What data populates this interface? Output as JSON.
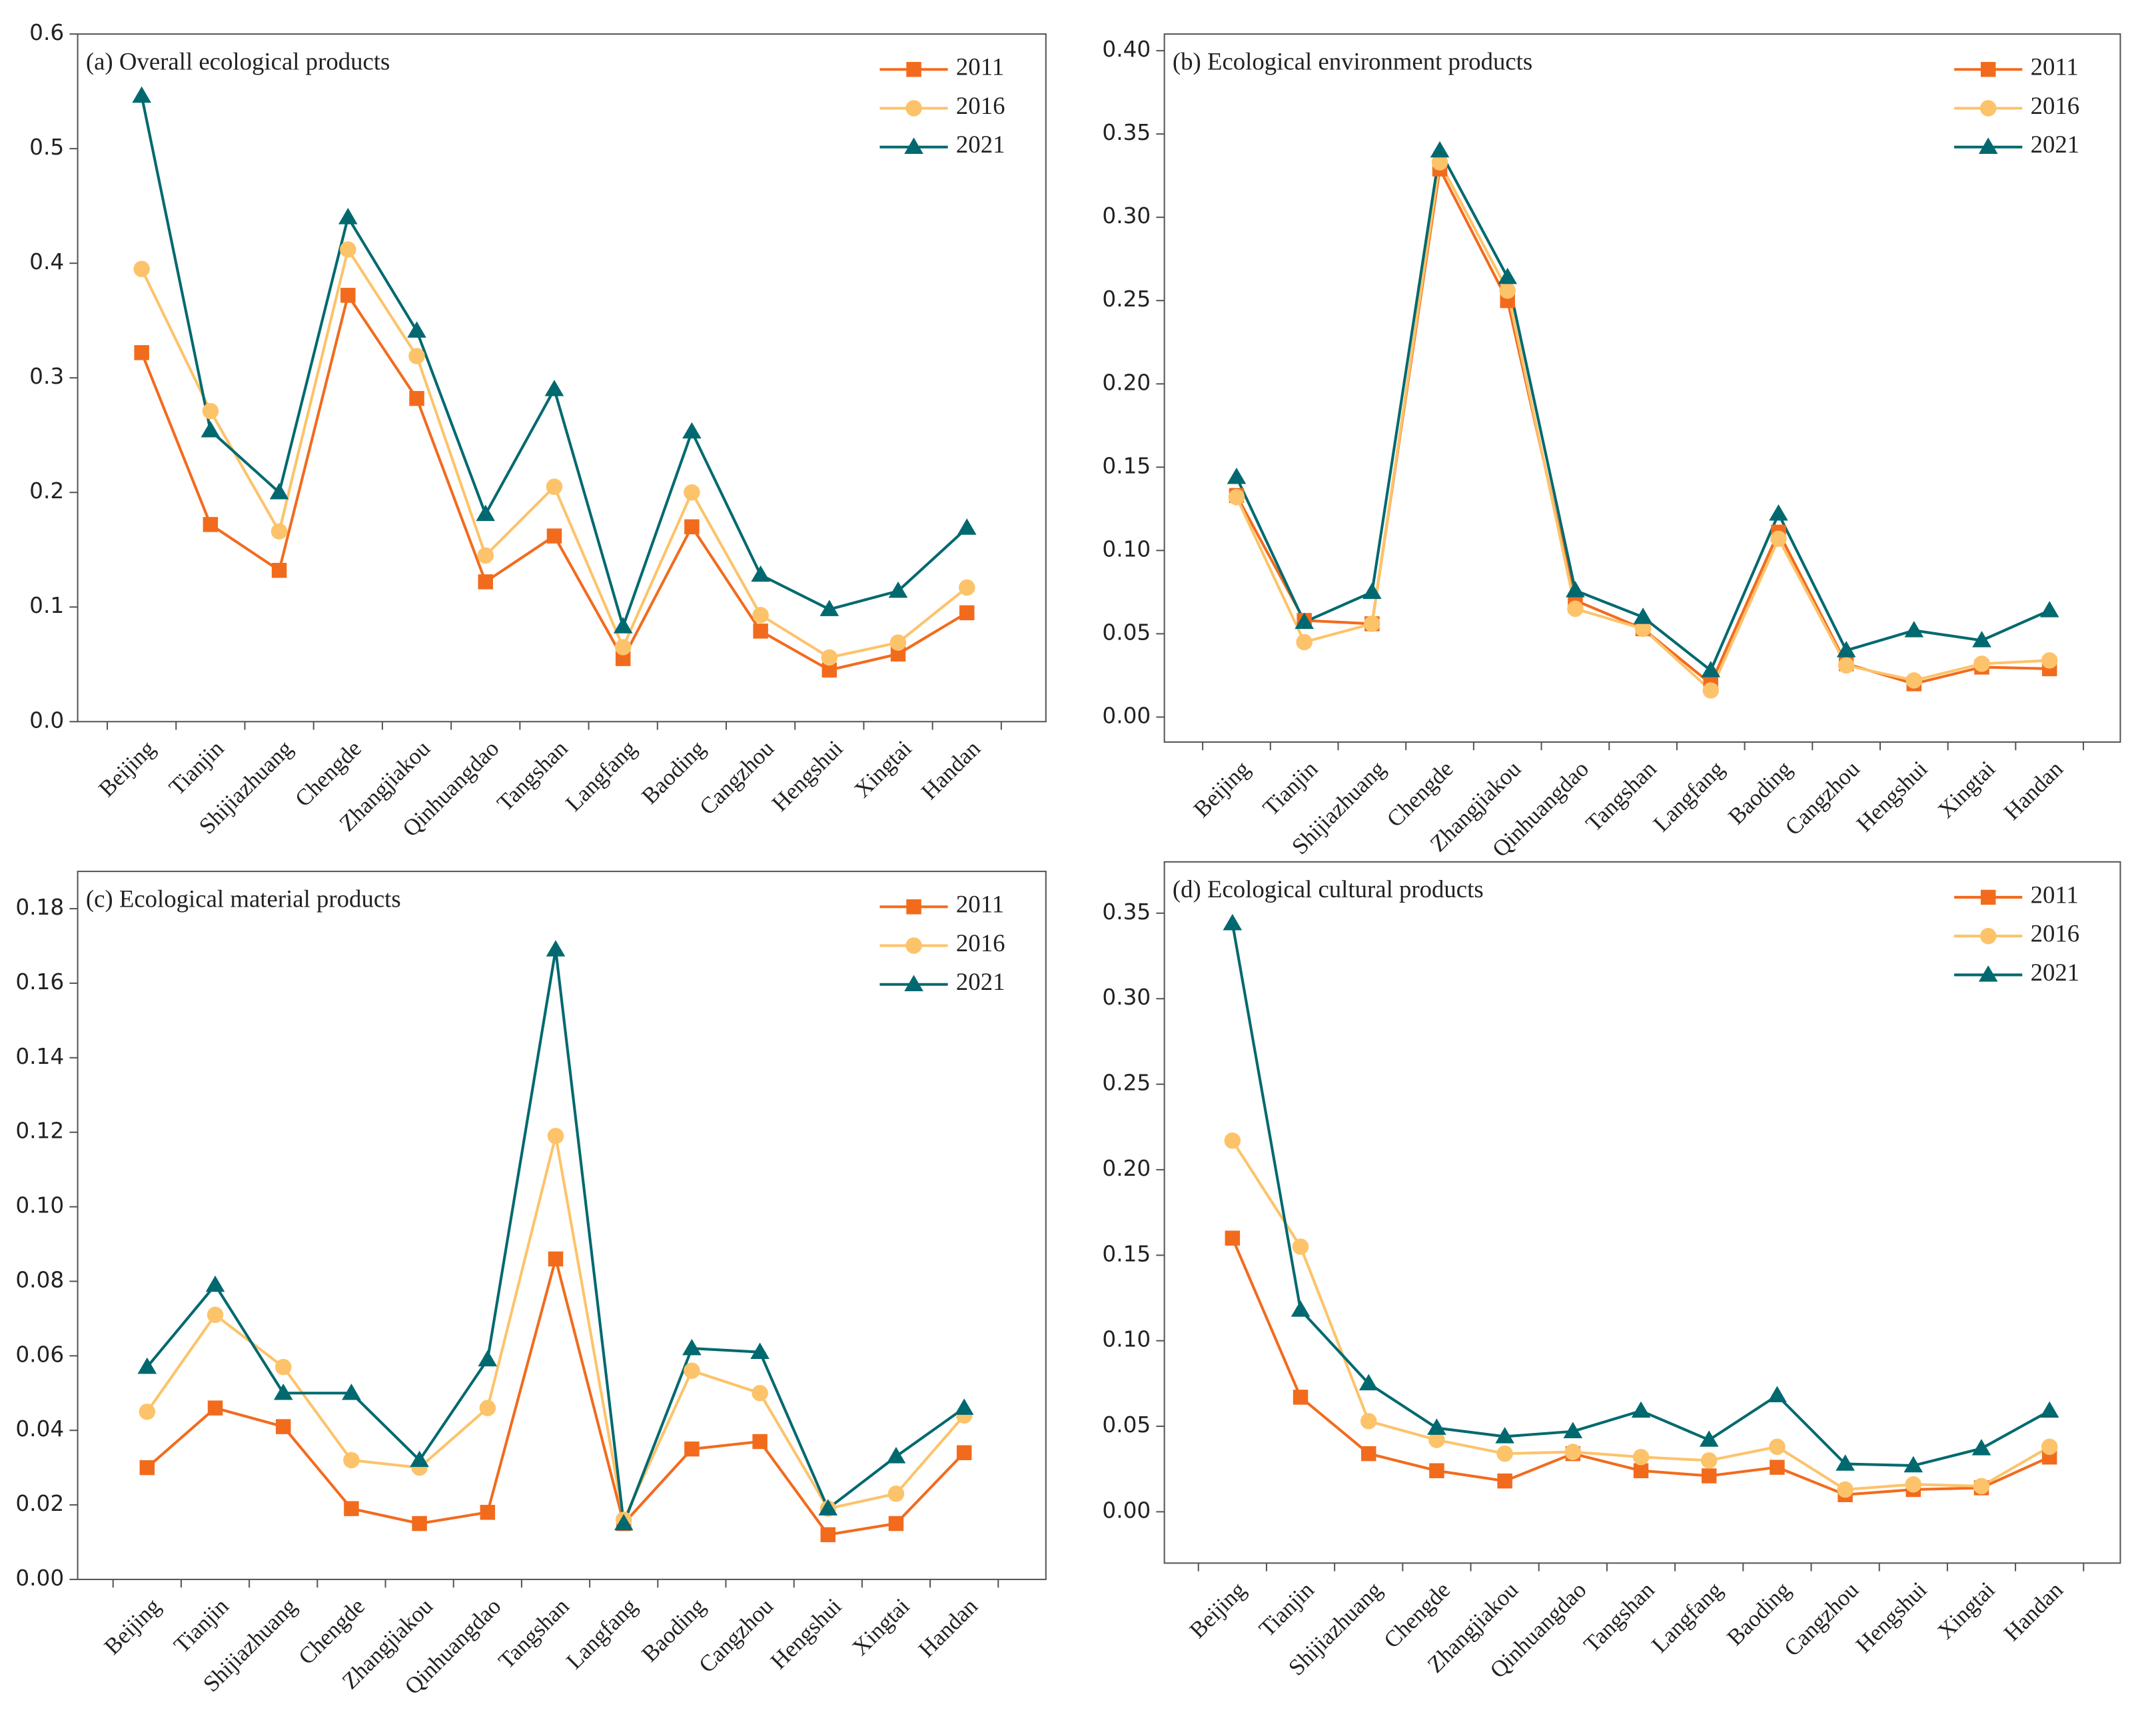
{
  "chart_data": [
    {
      "type": "line",
      "title": "(a) Overall ecological products",
      "categories": [
        "Beijing",
        "Tianjin",
        "Shijiazhuang",
        "Chengde",
        "Zhangjiakou",
        "Qinhuangdao",
        "Tangshan",
        "Langfang",
        "Baoding",
        "Cangzhou",
        "Hengshui",
        "Xingtai",
        "Handan"
      ],
      "series": [
        {
          "name": "2011",
          "color": "#f26b1d",
          "marker": "square",
          "values": [
            0.322,
            0.172,
            0.132,
            0.372,
            0.282,
            0.122,
            0.162,
            0.055,
            0.17,
            0.079,
            0.045,
            0.059,
            0.095
          ]
        },
        {
          "name": "2016",
          "color": "#fdc36a",
          "marker": "circle",
          "values": [
            0.395,
            0.271,
            0.166,
            0.412,
            0.319,
            0.145,
            0.205,
            0.065,
            0.2,
            0.093,
            0.056,
            0.069,
            0.117
          ]
        },
        {
          "name": "2021",
          "color": "#00696f",
          "marker": "triangle",
          "values": [
            0.546,
            0.254,
            0.2,
            0.44,
            0.341,
            0.181,
            0.29,
            0.083,
            0.253,
            0.128,
            0.098,
            0.114,
            0.169
          ]
        }
      ],
      "ylim": [
        0,
        0.6
      ],
      "yticks": [
        {
          "value": 0,
          "label": "0.0"
        },
        {
          "value": 0.1,
          "label": "0.1"
        },
        {
          "value": 0.2,
          "label": "0.2"
        },
        {
          "value": 0.3,
          "label": "0.3"
        },
        {
          "value": 0.4,
          "label": "0.4"
        },
        {
          "value": 0.5,
          "label": "0.5"
        },
        {
          "value": 0.6,
          "label": "0.6"
        }
      ],
      "legend": "upper right"
    },
    {
      "type": "line",
      "title": "(b) Ecological environment products",
      "categories": [
        "Beijing",
        "Tianjin",
        "Shijiazhuang",
        "Chengde",
        "Zhangjiakou",
        "Qinhuangdao",
        "Tangshan",
        "Langfang",
        "Baoding",
        "Cangzhou",
        "Hengshui",
        "Xingtai",
        "Handan"
      ],
      "series": [
        {
          "name": "2011",
          "color": "#f26b1d",
          "marker": "square",
          "values": [
            0.133,
            0.058,
            0.056,
            0.329,
            0.25,
            0.07,
            0.053,
            0.02,
            0.111,
            0.032,
            0.02,
            0.03,
            0.029
          ]
        },
        {
          "name": "2016",
          "color": "#fdc36a",
          "marker": "circle",
          "values": [
            0.132,
            0.045,
            0.056,
            0.333,
            0.256,
            0.065,
            0.053,
            0.016,
            0.107,
            0.031,
            0.022,
            0.032,
            0.034
          ]
        },
        {
          "name": "2021",
          "color": "#00696f",
          "marker": "triangle",
          "values": [
            0.144,
            0.057,
            0.075,
            0.34,
            0.264,
            0.076,
            0.06,
            0.028,
            0.122,
            0.04,
            0.052,
            0.046,
            0.064
          ]
        }
      ],
      "ylim": [
        -0.015,
        0.41
      ],
      "yticks": [
        {
          "value": 0,
          "label": "0.00"
        },
        {
          "value": 0.05,
          "label": "0.05"
        },
        {
          "value": 0.1,
          "label": "0.10"
        },
        {
          "value": 0.15,
          "label": "0.15"
        },
        {
          "value": 0.2,
          "label": "0.20"
        },
        {
          "value": 0.25,
          "label": "0.25"
        },
        {
          "value": 0.3,
          "label": "0.30"
        },
        {
          "value": 0.35,
          "label": "0.35"
        },
        {
          "value": 0.4,
          "label": "0.40"
        }
      ],
      "legend": "upper right"
    },
    {
      "type": "line",
      "title": "(c) Ecological material products",
      "categories": [
        "Beijing",
        "Tianjin",
        "Shijiazhuang",
        "Chengde",
        "Zhangjiakou",
        "Qinhuangdao",
        "Tangshan",
        "Langfang",
        "Baoding",
        "Cangzhou",
        "Hengshui",
        "Xingtai",
        "Handan"
      ],
      "series": [
        {
          "name": "2011",
          "color": "#f26b1d",
          "marker": "square",
          "values": [
            0.03,
            0.046,
            0.041,
            0.019,
            0.015,
            0.018,
            0.086,
            0.015,
            0.035,
            0.037,
            0.012,
            0.015,
            0.034
          ]
        },
        {
          "name": "2016",
          "color": "#fdc36a",
          "marker": "circle",
          "values": [
            0.045,
            0.071,
            0.057,
            0.032,
            0.03,
            0.046,
            0.119,
            0.016,
            0.056,
            0.05,
            0.019,
            0.023,
            0.044
          ]
        },
        {
          "name": "2021",
          "color": "#00696f",
          "marker": "triangle",
          "values": [
            0.057,
            0.079,
            0.05,
            0.05,
            0.032,
            0.059,
            0.169,
            0.015,
            0.062,
            0.061,
            0.019,
            0.033,
            0.046
          ]
        }
      ],
      "ylim": [
        0,
        0.19
      ],
      "yticks": [
        {
          "value": 0,
          "label": "0.00"
        },
        {
          "value": 0.02,
          "label": "0.02"
        },
        {
          "value": 0.04,
          "label": "0.04"
        },
        {
          "value": 0.06,
          "label": "0.06"
        },
        {
          "value": 0.08,
          "label": "0.08"
        },
        {
          "value": 0.1,
          "label": "0.10"
        },
        {
          "value": 0.12,
          "label": "0.12"
        },
        {
          "value": 0.14,
          "label": "0.14"
        },
        {
          "value": 0.16,
          "label": "0.16"
        },
        {
          "value": 0.18,
          "label": "0.18"
        }
      ],
      "legend": "upper right"
    },
    {
      "type": "line",
      "title": "(d) Ecological cultural products",
      "categories": [
        "Beijing",
        "Tianjin",
        "Shijiazhuang",
        "Chengde",
        "Zhangjiakou",
        "Qinhuangdao",
        "Tangshan",
        "Langfang",
        "Baoding",
        "Cangzhou",
        "Hengshui",
        "Xingtai",
        "Handan"
      ],
      "series": [
        {
          "name": "2011",
          "color": "#f26b1d",
          "marker": "square",
          "values": [
            0.16,
            0.067,
            0.034,
            0.024,
            0.018,
            0.034,
            0.024,
            0.021,
            0.026,
            0.01,
            0.013,
            0.014,
            0.032
          ]
        },
        {
          "name": "2016",
          "color": "#fdc36a",
          "marker": "circle",
          "values": [
            0.217,
            0.155,
            0.053,
            0.042,
            0.034,
            0.035,
            0.032,
            0.03,
            0.038,
            0.013,
            0.016,
            0.015,
            0.038
          ]
        },
        {
          "name": "2021",
          "color": "#00696f",
          "marker": "triangle",
          "values": [
            0.344,
            0.118,
            0.075,
            0.049,
            0.044,
            0.047,
            0.059,
            0.042,
            0.068,
            0.028,
            0.027,
            0.037,
            0.059
          ]
        }
      ],
      "ylim": [
        -0.03,
        0.38
      ],
      "yticks": [
        {
          "value": 0,
          "label": "0.00"
        },
        {
          "value": 0.05,
          "label": "0.05"
        },
        {
          "value": 0.1,
          "label": "0.10"
        },
        {
          "value": 0.15,
          "label": "0.15"
        },
        {
          "value": 0.2,
          "label": "0.20"
        },
        {
          "value": 0.25,
          "label": "0.25"
        },
        {
          "value": 0.3,
          "label": "0.30"
        },
        {
          "value": 0.35,
          "label": "0.35"
        }
      ],
      "legend": "upper right"
    }
  ]
}
